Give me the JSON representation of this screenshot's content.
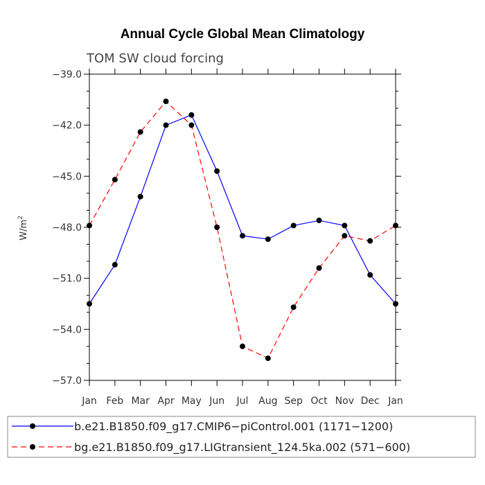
{
  "chart_data": {
    "type": "line",
    "title": "Annual Cycle Global Mean Climatology",
    "subtitle": "TOM SW cloud forcing",
    "ylabel": "W/m",
    "ylabel_sup": "2",
    "xlabel": "",
    "categories": [
      "Jan",
      "Feb",
      "Mar",
      "Apr",
      "May",
      "Jun",
      "Jul",
      "Aug",
      "Sep",
      "Oct",
      "Nov",
      "Dec",
      "Jan"
    ],
    "ylim": [
      -57.0,
      -39.0
    ],
    "yticks": [
      -39.0,
      -42.0,
      -45.0,
      -48.0,
      -51.0,
      -54.0,
      -57.0
    ],
    "ytick_labels": [
      "−39.0",
      "−42.0",
      "−45.0",
      "−48.0",
      "−51.0",
      "−54.0",
      "−57.0"
    ],
    "series": [
      {
        "name": "b.e21.B1850.f09_g17.CMIP6−piControl.001 (1171−1200)",
        "color": "#0000ff",
        "dash": "solid",
        "values": [
          -52.5,
          -50.2,
          -46.2,
          -42.0,
          -41.4,
          -44.7,
          -48.5,
          -48.7,
          -47.9,
          -47.6,
          -47.9,
          -50.8,
          -52.5
        ]
      },
      {
        "name": "bg.e21.B1850.f09_g17.LIGtransient_124.5ka.002 (571−600)",
        "color": "#ff0000",
        "dash": "dashed",
        "values": [
          -47.9,
          -45.2,
          -42.4,
          -40.6,
          -42.0,
          -48.0,
          -55.0,
          -55.7,
          -52.7,
          -50.4,
          -48.5,
          -48.8,
          -47.9
        ]
      }
    ],
    "grid": false,
    "legend_placement": "bottom"
  }
}
